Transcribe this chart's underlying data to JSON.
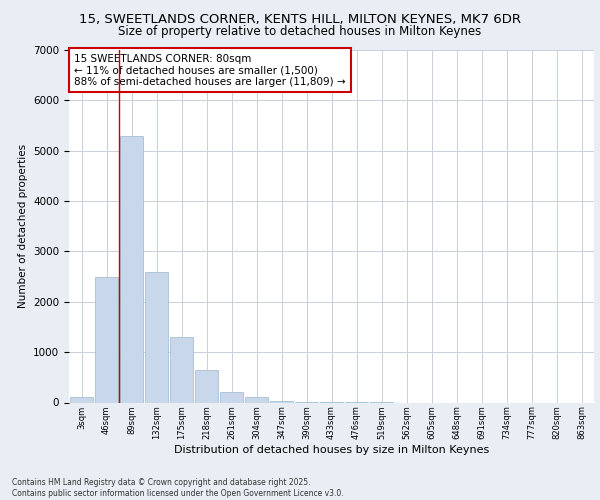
{
  "title_line1": "15, SWEETLANDS CORNER, KENTS HILL, MILTON KEYNES, MK7 6DR",
  "title_line2": "Size of property relative to detached houses in Milton Keynes",
  "xlabel": "Distribution of detached houses by size in Milton Keynes",
  "ylabel": "Number of detached properties",
  "categories": [
    "3sqm",
    "46sqm",
    "89sqm",
    "132sqm",
    "175sqm",
    "218sqm",
    "261sqm",
    "304sqm",
    "347sqm",
    "390sqm",
    "433sqm",
    "476sqm",
    "519sqm",
    "562sqm",
    "605sqm",
    "648sqm",
    "691sqm",
    "734sqm",
    "777sqm",
    "820sqm",
    "863sqm"
  ],
  "values": [
    100,
    2500,
    5300,
    2600,
    1300,
    650,
    200,
    100,
    30,
    10,
    5,
    2,
    1,
    0,
    0,
    0,
    0,
    0,
    0,
    0,
    0
  ],
  "bar_color": "#c8d8ea",
  "bar_edge_color": "#9ab8d0",
  "vline_color": "#cc0000",
  "annotation_text": "15 SWEETLANDS CORNER: 80sqm\n← 11% of detached houses are smaller (1,500)\n88% of semi-detached houses are larger (11,809) →",
  "annotation_box_color": "#ffffff",
  "annotation_box_edge": "#cc0000",
  "ylim": [
    0,
    7000
  ],
  "yticks": [
    0,
    1000,
    2000,
    3000,
    4000,
    5000,
    6000,
    7000
  ],
  "footnote": "Contains HM Land Registry data © Crown copyright and database right 2025.\nContains public sector information licensed under the Open Government Licence v3.0.",
  "bg_color": "#e8eef4",
  "plot_bg_color": "#ffffff",
  "grid_color": "#c8d0dc"
}
